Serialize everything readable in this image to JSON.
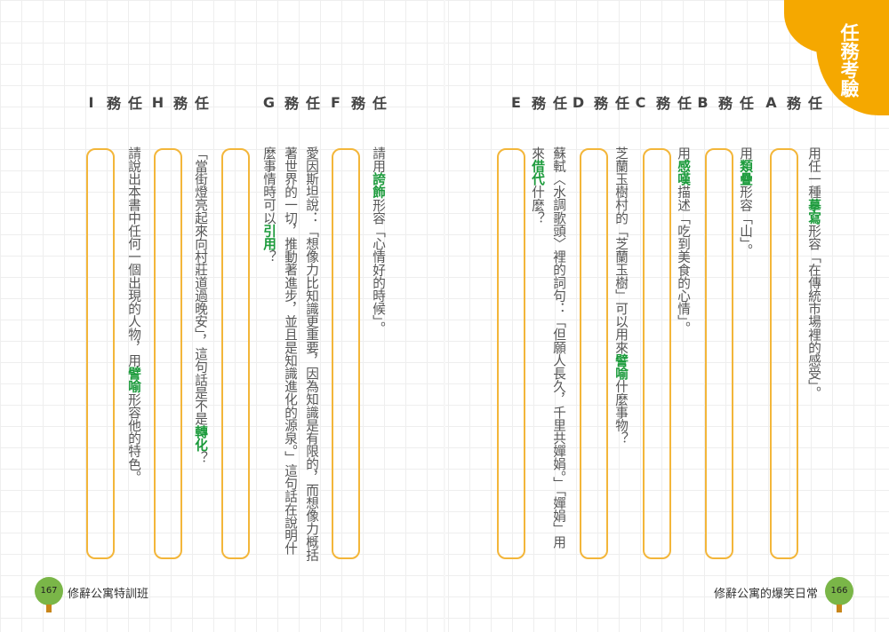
{
  "badge": {
    "label": "任務考驗",
    "color": "#f5a800"
  },
  "accent_colors": {
    "highlight": "#1a9a3a",
    "box_border": "#f3b63a",
    "folio": "#7ab648"
  },
  "tasks": [
    {
      "id": "A",
      "heading": "任務A",
      "lines": [
        [
          {
            "t": "用任一種"
          },
          {
            "t": "摹寫",
            "hl": true
          },
          {
            "t": "形容「在傳統市場裡的感受」。"
          }
        ]
      ]
    },
    {
      "id": "B",
      "heading": "任務B",
      "lines": [
        [
          {
            "t": "用"
          },
          {
            "t": "類疊",
            "hl": true
          },
          {
            "t": "形容「山」。"
          }
        ]
      ]
    },
    {
      "id": "C",
      "heading": "任務C",
      "lines": [
        [
          {
            "t": "用"
          },
          {
            "t": "感嘆",
            "hl": true
          },
          {
            "t": "描述「吃到美食的心情」。"
          }
        ]
      ]
    },
    {
      "id": "D",
      "heading": "任務D",
      "lines": [
        [
          {
            "t": "芝蘭玉樹村的「芝蘭玉樹」可以用來"
          },
          {
            "t": "譬喻",
            "hl": true
          },
          {
            "t": "什麼事物？"
          }
        ]
      ]
    },
    {
      "id": "E",
      "heading": "任務E",
      "lines": [
        [
          {
            "t": "蘇軾〈水調歌頭〉裡的詞句：「但願人長久，千里共嬋娟。」「嬋娟」用"
          }
        ],
        [
          {
            "t": "來"
          },
          {
            "t": "借代",
            "hl": true
          },
          {
            "t": "什麼？"
          }
        ]
      ]
    },
    {
      "id": "F",
      "heading": "任務F",
      "lines": [
        [
          {
            "t": "請用"
          },
          {
            "t": "誇飾",
            "hl": true
          },
          {
            "t": "形容「心情好的時候」。"
          }
        ]
      ]
    },
    {
      "id": "G",
      "heading": "任務G",
      "lines": [
        [
          {
            "t": "愛因斯坦說：「想像力比知識更重要，因為知識是有限的，而想像力概括"
          }
        ],
        [
          {
            "t": "著世界的一切，推動著進步，並且是知識進化的源泉。」這句話在說明什"
          }
        ],
        [
          {
            "t": "麼事情時可以"
          },
          {
            "t": "引用",
            "hl": true
          },
          {
            "t": "？"
          }
        ]
      ]
    },
    {
      "id": "H",
      "heading": "任務H",
      "lines": [
        [
          {
            "t": "「當街燈亮起來向村莊道過晚安」，這句話是不是"
          },
          {
            "t": "轉化",
            "hl": true
          },
          {
            "t": "？"
          }
        ]
      ]
    },
    {
      "id": "I",
      "heading": "任務I",
      "lines": [
        [
          {
            "t": "請說出本書中任何一個出現的人物，用"
          },
          {
            "t": "譬喻",
            "hl": true
          },
          {
            "t": "形容他的特色。"
          }
        ]
      ]
    }
  ],
  "footer": {
    "left": {
      "page": "167",
      "title": "修辭公寓特訓班"
    },
    "right": {
      "page": "166",
      "title": "修辭公寓的爆笑日常"
    }
  }
}
